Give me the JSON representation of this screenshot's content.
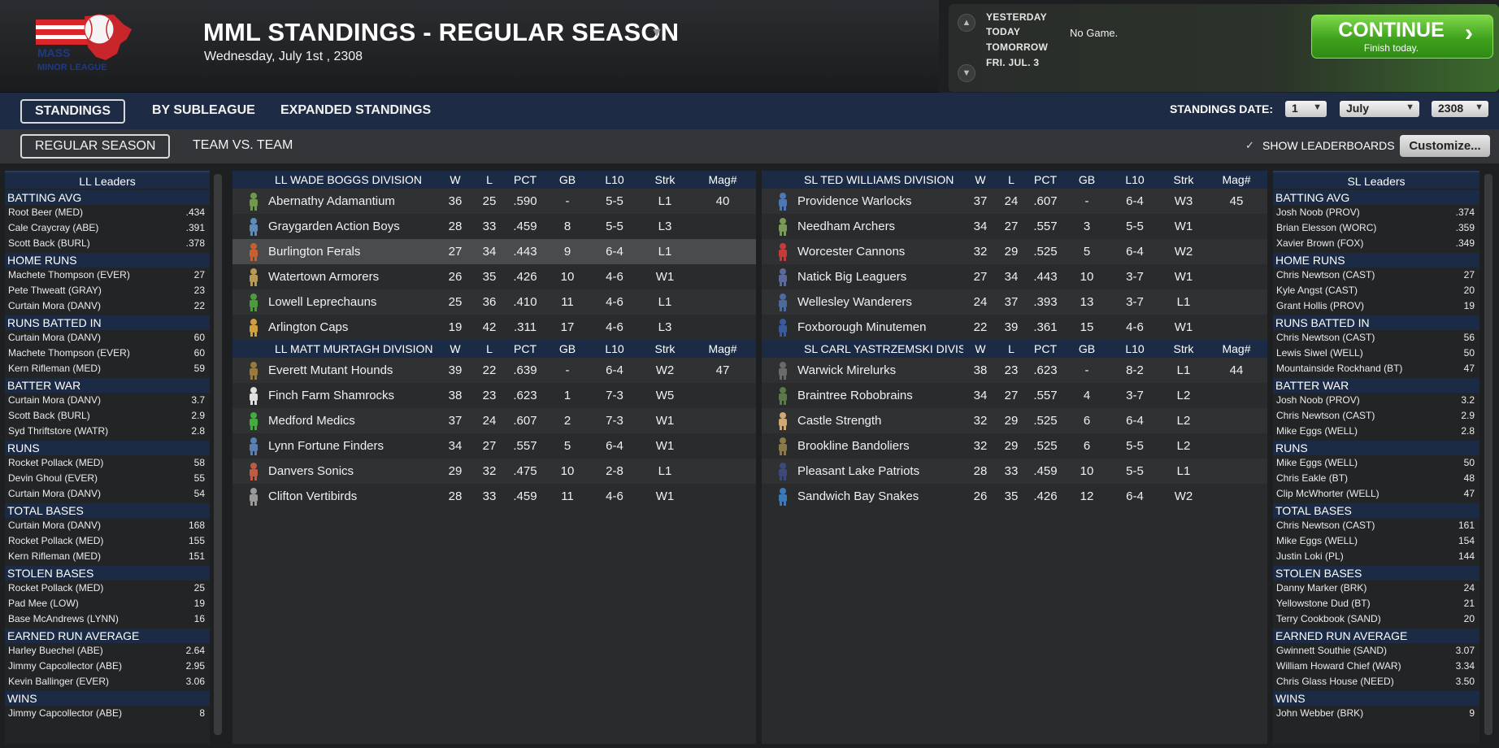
{
  "header": {
    "logo_text": "MASS MINOR LEAGUE",
    "title": "MML STANDINGS - REGULAR SEASON",
    "date": "Wednesday, July 1st , 2308"
  },
  "schedule": {
    "days": [
      "YESTERDAY",
      "TODAY",
      "TOMORROW",
      "FRI. JUL. 3"
    ],
    "today_game": "No Game.",
    "continue_label": "CONTINUE",
    "continue_sub": "Finish today."
  },
  "tabs": {
    "primary": [
      "STANDINGS",
      "BY SUBLEAGUE",
      "EXPANDED STANDINGS"
    ],
    "secondary": [
      "REGULAR SEASON",
      "TEAM VS. TEAM"
    ],
    "standings_date_label": "STANDINGS DATE:",
    "date_day": "1",
    "date_month": "July",
    "date_year": "2308",
    "show_leaderboards": "SHOW LEADERBOARDS",
    "customize": "Customize..."
  },
  "colors": {
    "accent_navy": "#1c2b45",
    "continue_green": "#3fa21d"
  },
  "columns": [
    "W",
    "L",
    "PCT",
    "GB",
    "L10",
    "Strk",
    "Mag#"
  ],
  "ll_leaders": {
    "title": "LL Leaders",
    "categories": [
      {
        "name": "BATTING AVG",
        "rows": [
          [
            "Root Beer (MED)",
            ".434"
          ],
          [
            "Cale Craycray (ABE)",
            ".391"
          ],
          [
            "Scott Back (BURL)",
            ".378"
          ]
        ]
      },
      {
        "name": "HOME RUNS",
        "rows": [
          [
            "Machete Thompson (EVER)",
            "27"
          ],
          [
            "Pete Thweatt (GRAY)",
            "23"
          ],
          [
            "Curtain Mora (DANV)",
            "22"
          ]
        ]
      },
      {
        "name": "RUNS BATTED IN",
        "rows": [
          [
            "Curtain Mora (DANV)",
            "60"
          ],
          [
            "Machete Thompson (EVER)",
            "60"
          ],
          [
            "Kern Rifleman (MED)",
            "59"
          ]
        ]
      },
      {
        "name": "BATTER WAR",
        "rows": [
          [
            "Curtain Mora (DANV)",
            "3.7"
          ],
          [
            "Scott Back (BURL)",
            "2.9"
          ],
          [
            "Syd Thriftstore (WATR)",
            "2.8"
          ]
        ]
      },
      {
        "name": "RUNS",
        "rows": [
          [
            "Rocket Pollack (MED)",
            "58"
          ],
          [
            "Devin Ghoul (EVER)",
            "55"
          ],
          [
            "Curtain Mora (DANV)",
            "54"
          ]
        ]
      },
      {
        "name": "TOTAL BASES",
        "rows": [
          [
            "Curtain Mora (DANV)",
            "168"
          ],
          [
            "Rocket Pollack (MED)",
            "155"
          ],
          [
            "Kern Rifleman (MED)",
            "151"
          ]
        ]
      },
      {
        "name": "STOLEN BASES",
        "rows": [
          [
            "Rocket Pollack (MED)",
            "25"
          ],
          [
            "Pad Mee (LOW)",
            "19"
          ],
          [
            "Base McAndrews (LYNN)",
            "16"
          ]
        ]
      },
      {
        "name": "EARNED RUN AVERAGE",
        "rows": [
          [
            "Harley Buechel (ABE)",
            "2.64"
          ],
          [
            "Jimmy Capcollector (ABE)",
            "2.95"
          ],
          [
            "Kevin Ballinger (EVER)",
            "3.06"
          ]
        ]
      },
      {
        "name": "WINS",
        "rows": [
          [
            "Jimmy Capcollector (ABE)",
            "8"
          ]
        ]
      }
    ]
  },
  "sl_leaders": {
    "title": "SL Leaders",
    "categories": [
      {
        "name": "BATTING AVG",
        "rows": [
          [
            "Josh Noob (PROV)",
            ".374"
          ],
          [
            "Brian Elesson (WORC)",
            ".359"
          ],
          [
            "Xavier Brown (FOX)",
            ".349"
          ]
        ]
      },
      {
        "name": "HOME RUNS",
        "rows": [
          [
            "Chris Newtson (CAST)",
            "27"
          ],
          [
            "Kyle Angst (CAST)",
            "20"
          ],
          [
            "Grant Hollis (PROV)",
            "19"
          ]
        ]
      },
      {
        "name": "RUNS BATTED IN",
        "rows": [
          [
            "Chris Newtson (CAST)",
            "56"
          ],
          [
            "Lewis Siwel (WELL)",
            "50"
          ],
          [
            "Mountainside Rockhand (BT)",
            "47"
          ]
        ]
      },
      {
        "name": "BATTER WAR",
        "rows": [
          [
            "Josh Noob (PROV)",
            "3.2"
          ],
          [
            "Chris Newtson (CAST)",
            "2.9"
          ],
          [
            "Mike Eggs (WELL)",
            "2.8"
          ]
        ]
      },
      {
        "name": "RUNS",
        "rows": [
          [
            "Mike Eggs (WELL)",
            "50"
          ],
          [
            "Chris Eakle (BT)",
            "48"
          ],
          [
            "Clip McWhorter (WELL)",
            "47"
          ]
        ]
      },
      {
        "name": "TOTAL BASES",
        "rows": [
          [
            "Chris Newtson (CAST)",
            "161"
          ],
          [
            "Mike Eggs (WELL)",
            "154"
          ],
          [
            "Justin Loki (PL)",
            "144"
          ]
        ]
      },
      {
        "name": "STOLEN BASES",
        "rows": [
          [
            "Danny Marker (BRK)",
            "24"
          ],
          [
            "Yellowstone Dud (BT)",
            "21"
          ],
          [
            "Terry Cookbook (SAND)",
            "20"
          ]
        ]
      },
      {
        "name": "EARNED RUN AVERAGE",
        "rows": [
          [
            "Gwinnett Southie (SAND)",
            "3.07"
          ],
          [
            "William Howard Chief (WAR)",
            "3.34"
          ],
          [
            "Chris Glass House (NEED)",
            "3.50"
          ]
        ]
      },
      {
        "name": "WINS",
        "rows": [
          [
            "John Webber (BRK)",
            "9"
          ]
        ]
      }
    ]
  },
  "ll_divisions": [
    {
      "name": "LL WADE BOGGS DIVISION",
      "teams": [
        {
          "team": "Abernathy Adamantium",
          "w": "36",
          "l": "25",
          "pct": ".590",
          "gb": "-",
          "l10": "5-5",
          "strk": "L1",
          "mag": "40",
          "icon_color": "#6f9a4a"
        },
        {
          "team": "Graygarden Action Boys",
          "w": "28",
          "l": "33",
          "pct": ".459",
          "gb": "8",
          "l10": "5-5",
          "strk": "L3",
          "mag": "",
          "icon_color": "#5f8bb8"
        },
        {
          "team": "Burlington Ferals",
          "w": "27",
          "l": "34",
          "pct": ".443",
          "gb": "9",
          "l10": "6-4",
          "strk": "L1",
          "mag": "",
          "icon_color": "#c8602e"
        },
        {
          "team": "Watertown Armorers",
          "w": "26",
          "l": "35",
          "pct": ".426",
          "gb": "10",
          "l10": "4-6",
          "strk": "W1",
          "mag": "",
          "icon_color": "#b89a55"
        },
        {
          "team": "Lowell Leprechauns",
          "w": "25",
          "l": "36",
          "pct": ".410",
          "gb": "11",
          "l10": "4-6",
          "strk": "L1",
          "mag": "",
          "icon_color": "#4c9c3a"
        },
        {
          "team": "Arlington Caps",
          "w": "19",
          "l": "42",
          "pct": ".311",
          "gb": "17",
          "l10": "4-6",
          "strk": "L3",
          "mag": "",
          "icon_color": "#d0a040"
        }
      ]
    },
    {
      "name": "LL MATT MURTAGH DIVISION",
      "teams": [
        {
          "team": "Everett Mutant Hounds",
          "w": "39",
          "l": "22",
          "pct": ".639",
          "gb": "-",
          "l10": "6-4",
          "strk": "W2",
          "mag": "47",
          "icon_color": "#9a7a3a"
        },
        {
          "team": "Finch Farm Shamrocks",
          "w": "38",
          "l": "23",
          "pct": ".623",
          "gb": "1",
          "l10": "7-3",
          "strk": "W5",
          "mag": "",
          "icon_color": "#e0e0e0"
        },
        {
          "team": "Medford Medics",
          "w": "37",
          "l": "24",
          "pct": ".607",
          "gb": "2",
          "l10": "7-3",
          "strk": "W1",
          "mag": "",
          "icon_color": "#3fae3a"
        },
        {
          "team": "Lynn Fortune Finders",
          "w": "34",
          "l": "27",
          "pct": ".557",
          "gb": "5",
          "l10": "6-4",
          "strk": "W1",
          "mag": "",
          "icon_color": "#5a7fb0"
        },
        {
          "team": "Danvers Sonics",
          "w": "29",
          "l": "32",
          "pct": ".475",
          "gb": "10",
          "l10": "2-8",
          "strk": "L1",
          "mag": "",
          "icon_color": "#c05a40"
        },
        {
          "team": "Clifton Vertibirds",
          "w": "28",
          "l": "33",
          "pct": ".459",
          "gb": "11",
          "l10": "4-6",
          "strk": "W1",
          "mag": "",
          "icon_color": "#9a9a9a"
        }
      ]
    }
  ],
  "sl_divisions": [
    {
      "name": "SL TED WILLIAMS DIVISION",
      "teams": [
        {
          "team": "Providence Warlocks",
          "w": "37",
          "l": "24",
          "pct": ".607",
          "gb": "-",
          "l10": "6-4",
          "strk": "W3",
          "mag": "45",
          "icon_color": "#4a78b8"
        },
        {
          "team": "Needham Archers",
          "w": "34",
          "l": "27",
          "pct": ".557",
          "gb": "3",
          "l10": "5-5",
          "strk": "W1",
          "mag": "",
          "icon_color": "#7a9a5a"
        },
        {
          "team": "Worcester Cannons",
          "w": "32",
          "l": "29",
          "pct": ".525",
          "gb": "5",
          "l10": "6-4",
          "strk": "W2",
          "mag": "",
          "icon_color": "#c83a3a"
        },
        {
          "team": "Natick Big Leaguers",
          "w": "27",
          "l": "34",
          "pct": ".443",
          "gb": "10",
          "l10": "3-7",
          "strk": "W1",
          "mag": "",
          "icon_color": "#5a6a9a"
        },
        {
          "team": "Wellesley Wanderers",
          "w": "24",
          "l": "37",
          "pct": ".393",
          "gb": "13",
          "l10": "3-7",
          "strk": "L1",
          "mag": "",
          "icon_color": "#4a6aa0"
        },
        {
          "team": "Foxborough Minutemen",
          "w": "22",
          "l": "39",
          "pct": ".361",
          "gb": "15",
          "l10": "4-6",
          "strk": "W1",
          "mag": "",
          "icon_color": "#3a5aa0"
        }
      ]
    },
    {
      "name": "SL CARL YASTRZEMSKI DIVISION",
      "teams": [
        {
          "team": "Warwick Mirelurks",
          "w": "38",
          "l": "23",
          "pct": ".623",
          "gb": "-",
          "l10": "8-2",
          "strk": "L1",
          "mag": "44",
          "icon_color": "#6a6a6a"
        },
        {
          "team": "Braintree Robobrains",
          "w": "34",
          "l": "27",
          "pct": ".557",
          "gb": "4",
          "l10": "3-7",
          "strk": "L2",
          "mag": "",
          "icon_color": "#5a7a4a"
        },
        {
          "team": "Castle Strength",
          "w": "32",
          "l": "29",
          "pct": ".525",
          "gb": "6",
          "l10": "6-4",
          "strk": "L2",
          "mag": "",
          "icon_color": "#d0a870"
        },
        {
          "team": "Brookline Bandoliers",
          "w": "32",
          "l": "29",
          "pct": ".525",
          "gb": "6",
          "l10": "5-5",
          "strk": "L2",
          "mag": "",
          "icon_color": "#8a7a4a"
        },
        {
          "team": "Pleasant Lake Patriots",
          "w": "28",
          "l": "33",
          "pct": ".459",
          "gb": "10",
          "l10": "5-5",
          "strk": "L1",
          "mag": "",
          "icon_color": "#3a4a7a"
        },
        {
          "team": "Sandwich Bay Snakes",
          "w": "26",
          "l": "35",
          "pct": ".426",
          "gb": "12",
          "l10": "6-4",
          "strk": "W2",
          "mag": "",
          "icon_color": "#3a7ab8"
        }
      ]
    }
  ]
}
